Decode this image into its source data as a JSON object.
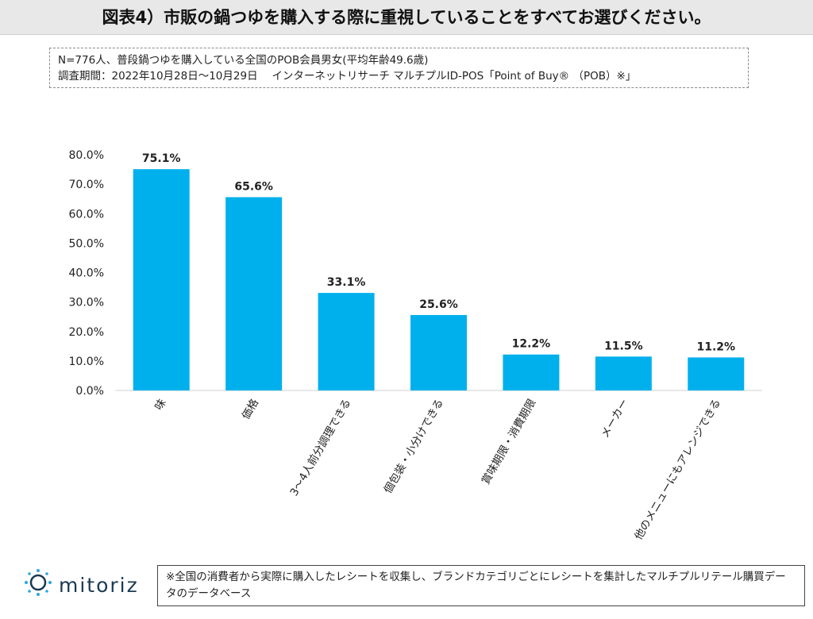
{
  "header": {
    "title": "図表4）市販の鍋つゆを購入する際に重視していることをすべてお選びください。"
  },
  "info": {
    "line1": "N=776人、普段鍋つゆを購入している全国のPOB会員男女(平均年齢49.6歳)",
    "line2": "調査期間：2022年10月28日～10月29日　 インターネットリサーチ マルチプルID-POS「Point of Buy® （POB）※」"
  },
  "chart_data": {
    "type": "bar",
    "categories": [
      "味",
      "価格",
      "3～4人前分調理できる",
      "個包装・小分けできる",
      "賞味期限・消費期限",
      "メーカー",
      "他のメニューにもアレンジできる"
    ],
    "values": [
      75.1,
      65.6,
      33.1,
      25.6,
      12.2,
      11.5,
      11.2
    ],
    "value_labels": [
      "75.1%",
      "65.6%",
      "33.1%",
      "25.6%",
      "12.2%",
      "11.5%",
      "11.2%"
    ],
    "ylim": [
      0,
      80
    ],
    "yticks": [
      "0.0%",
      "10.0%",
      "20.0%",
      "30.0%",
      "40.0%",
      "50.0%",
      "60.0%",
      "70.0%",
      "80.0%"
    ],
    "bar_color": "#00b0ec",
    "grid": false
  },
  "logo": {
    "text": "mitoriz",
    "color": "#1a3a52",
    "accent": "#2aa7df"
  },
  "footer": {
    "note": "※全国の消費者から実際に購入したレシートを収集し、ブランドカテゴリごとにレシートを集計したマルチプルリテール購買データのデータベース"
  }
}
